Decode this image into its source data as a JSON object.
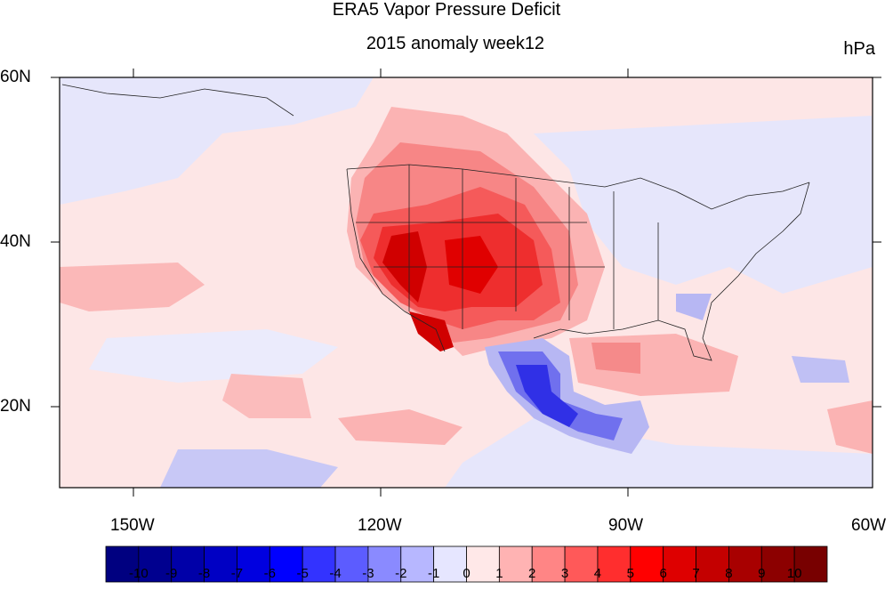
{
  "title": "ERA5 Vapor Pressure Deficit",
  "subtitle": "2015 anomaly week12",
  "units": "hPa",
  "lat_labels": [
    "60N",
    "40N",
    "20N"
  ],
  "lon_labels": [
    "150W",
    "120W",
    "90W",
    "60W"
  ],
  "colorbar": {
    "labels": [
      "-10",
      "-9",
      "-8",
      "-7",
      "-6",
      "-5",
      "-4",
      "-3",
      "-2",
      "-1",
      "0",
      "1",
      "2",
      "3",
      "4",
      "5",
      "6",
      "7",
      "8",
      "9",
      "10"
    ],
    "colors": [
      "#000080",
      "#00008f",
      "#0000a8",
      "#0000c4",
      "#0000e0",
      "#0000ff",
      "#3333ff",
      "#5c5cff",
      "#8a8aff",
      "#b7b7ff",
      "#e6e6ff",
      "#ffe8e8",
      "#ffb3b3",
      "#ff8585",
      "#ff5959",
      "#ff2e2e",
      "#ff0000",
      "#de0000",
      "#c40000",
      "#a80000",
      "#8c0000",
      "#780000"
    ]
  },
  "map": {
    "background_anomaly_color": "#fde6e6",
    "ocean_neutral_color": "#e4e4fb",
    "hotspot_southwest_us": "#e00000",
    "coldspot_mexico": "#2020e0"
  }
}
